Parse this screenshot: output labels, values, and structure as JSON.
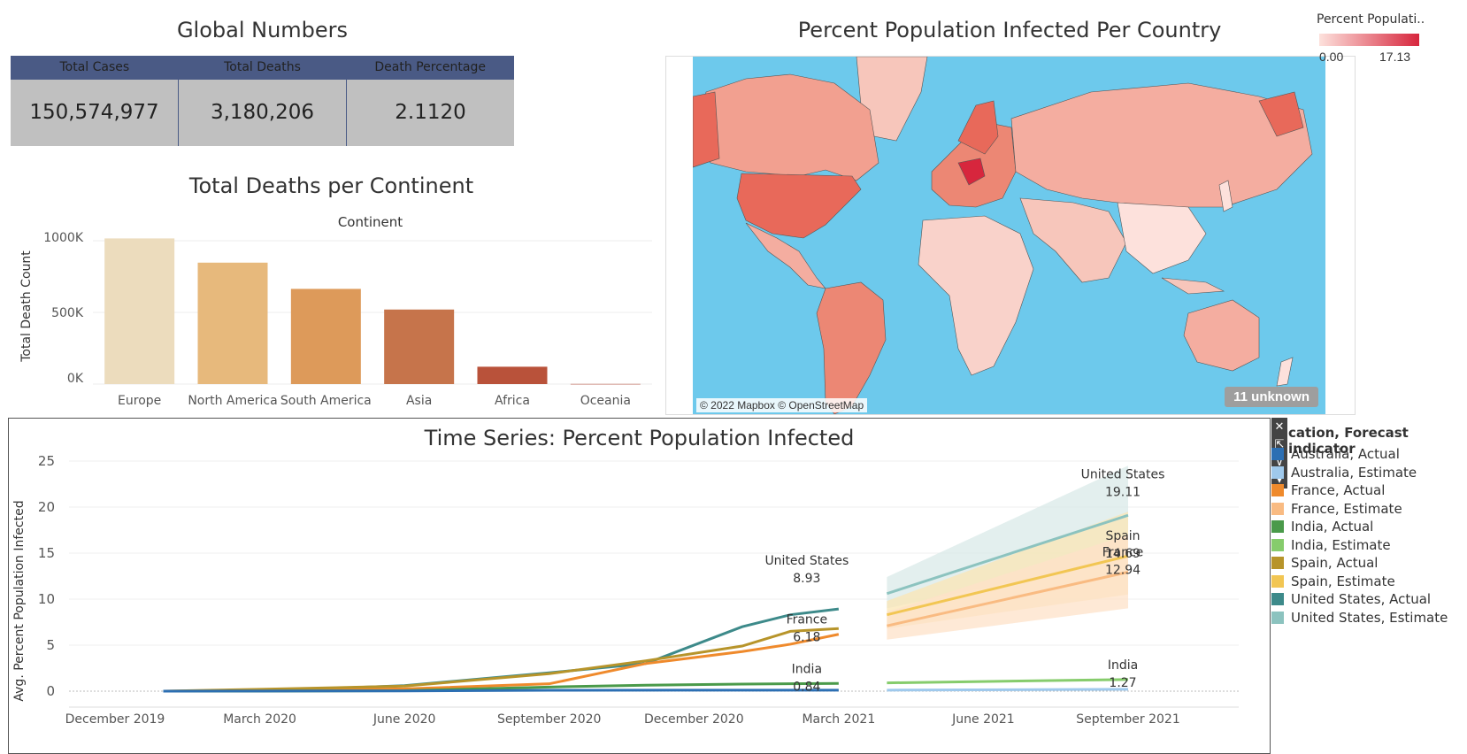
{
  "global": {
    "title": "Global Numbers",
    "headers": [
      "Total Cases",
      "Total Deaths",
      "Death Percentage"
    ],
    "values": [
      "150,574,977",
      "3,180,206",
      "2.1120"
    ]
  },
  "map": {
    "title": "Percent Population Infected Per Country",
    "legend_title": "Percent Populati..",
    "legend_min": "0.00",
    "legend_max": "17.13",
    "legend_colors": [
      "#fde1dc",
      "#d7263d"
    ],
    "attribution": "© 2022 Mapbox © OpenStreetMap",
    "unknown": "11 unknown",
    "sea_color": "#6dc9ec"
  },
  "continent_chart": {
    "title": "Total Deaths per Continent",
    "header": "Continent",
    "ylabel": "Total Death Count",
    "yticks": [
      "1000K",
      "500K",
      "0K"
    ]
  },
  "timeseries": {
    "title": "Time Series: Percent Population Infected",
    "ylabel": "Avg. Percent Population Infected",
    "yticks": [
      "25",
      "20",
      "15",
      "10",
      "5",
      "0"
    ],
    "xticks": [
      "December 2019",
      "March 2020",
      "June 2020",
      "September 2020",
      "December 2020",
      "March 2021",
      "June 2021",
      "September 2021"
    ],
    "labels": [
      {
        "name": "United States",
        "value": "8.93"
      },
      {
        "name": "France",
        "value": "6.18"
      },
      {
        "name": "India",
        "value": "0.84"
      },
      {
        "name": "United States",
        "value": "19.11"
      },
      {
        "name": "Spain",
        "value": "14.69"
      },
      {
        "name": "France",
        "value": "12.94"
      },
      {
        "name": "India",
        "value": "1.27"
      }
    ],
    "legend_title": "cation, Forecast indicator",
    "legend": [
      {
        "label": "Australia, Actual",
        "color": "#2c6fb3"
      },
      {
        "label": "Australia, Estimate",
        "color": "#9fc9ec"
      },
      {
        "label": "France, Actual",
        "color": "#ef8a2c"
      },
      {
        "label": "France, Estimate",
        "color": "#f9bb82"
      },
      {
        "label": "India, Actual",
        "color": "#4a9a4a"
      },
      {
        "label": "India, Estimate",
        "color": "#86cc6c"
      },
      {
        "label": "Spain, Actual",
        "color": "#b7942a"
      },
      {
        "label": "Spain, Estimate",
        "color": "#f2c653"
      },
      {
        "label": "United States, Actual",
        "color": "#3d8a8a"
      },
      {
        "label": "United States, Estimate",
        "color": "#8cc3bf"
      }
    ],
    "tools": [
      "✕",
      "⇱",
      "⊽",
      "▾"
    ]
  },
  "chart_data": [
    {
      "type": "bar",
      "title": "Total Deaths per Continent",
      "xlabel": "Continent",
      "ylabel": "Total Death Count",
      "categories": [
        "Europe",
        "North America",
        "South America",
        "Asia",
        "Africa",
        "Oceania"
      ],
      "values": [
        1016000,
        847000,
        664000,
        520000,
        121000,
        1000
      ],
      "colors": [
        "#ecdcbd",
        "#e7b97c",
        "#dd9a5a",
        "#c6744b",
        "#b9523a",
        "#b0402e"
      ],
      "ylim": [
        0,
        1000000
      ]
    },
    {
      "type": "line",
      "title": "Time Series: Percent Population Infected",
      "ylabel": "Avg. Percent Population Infected",
      "ylim": [
        0,
        25
      ],
      "x_start": "2019-12",
      "x_end": "2021-09",
      "series": [
        {
          "name": "United States, Actual",
          "color": "#3d8a8a",
          "points": [
            [
              "2020-01",
              0.0
            ],
            [
              "2020-03",
              0.01
            ],
            [
              "2020-06",
              0.6
            ],
            [
              "2020-09",
              2.0
            ],
            [
              "2020-11",
              3.0
            ],
            [
              "2021-01",
              7.0
            ],
            [
              "2021-02",
              8.3
            ],
            [
              "2021-03",
              8.93
            ]
          ]
        },
        {
          "name": "France, Actual",
          "color": "#ef8a2c",
          "points": [
            [
              "2020-01",
              0.0
            ],
            [
              "2020-03",
              0.08
            ],
            [
              "2020-06",
              0.25
            ],
            [
              "2020-09",
              0.8
            ],
            [
              "2020-11",
              3.0
            ],
            [
              "2021-01",
              4.3
            ],
            [
              "2021-02",
              5.1
            ],
            [
              "2021-03",
              6.18
            ]
          ]
        },
        {
          "name": "Spain, Actual",
          "color": "#b7942a",
          "points": [
            [
              "2020-01",
              0.0
            ],
            [
              "2020-03",
              0.2
            ],
            [
              "2020-06",
              0.55
            ],
            [
              "2020-09",
              1.9
            ],
            [
              "2020-11",
              3.3
            ],
            [
              "2021-01",
              4.9
            ],
            [
              "2021-02",
              6.5
            ],
            [
              "2021-03",
              6.8
            ]
          ]
        },
        {
          "name": "India, Actual",
          "color": "#4a9a4a",
          "points": [
            [
              "2020-01",
              0.0
            ],
            [
              "2020-03",
              0.0
            ],
            [
              "2020-06",
              0.05
            ],
            [
              "2020-09",
              0.45
            ],
            [
              "2020-11",
              0.65
            ],
            [
              "2021-01",
              0.77
            ],
            [
              "2021-03",
              0.84
            ]
          ]
        },
        {
          "name": "Australia, Actual",
          "color": "#2c6fb3",
          "points": [
            [
              "2020-01",
              0.0
            ],
            [
              "2020-03",
              0.01
            ],
            [
              "2020-06",
              0.03
            ],
            [
              "2020-09",
              0.1
            ],
            [
              "2021-03",
              0.11
            ]
          ]
        },
        {
          "name": "United States, Estimate",
          "color": "#8cc3bf",
          "band": "#d9eae8",
          "points": [
            [
              "2021-04",
              10.6
            ],
            [
              "2021-09",
              19.11
            ]
          ],
          "upper": [
            [
              "2021-04",
              12.4
            ],
            [
              "2021-09",
              24.5
            ]
          ],
          "lower": [
            [
              "2021-04",
              9.0
            ],
            [
              "2021-09",
              14.5
            ]
          ]
        },
        {
          "name": "Spain, Estimate",
          "color": "#f2c653",
          "band": "#fbe6b4",
          "points": [
            [
              "2021-04",
              8.3
            ],
            [
              "2021-09",
              14.69
            ]
          ],
          "upper": [
            [
              "2021-04",
              9.8
            ],
            [
              "2021-09",
              19.5
            ]
          ],
          "lower": [
            [
              "2021-04",
              6.8
            ],
            [
              "2021-09",
              10.5
            ]
          ]
        },
        {
          "name": "France, Estimate",
          "color": "#f9bb82",
          "band": "#fde2c8",
          "points": [
            [
              "2021-04",
              7.1
            ],
            [
              "2021-09",
              12.94
            ]
          ],
          "upper": [
            [
              "2021-04",
              8.6
            ],
            [
              "2021-09",
              17.0
            ]
          ],
          "lower": [
            [
              "2021-04",
              5.6
            ],
            [
              "2021-09",
              9.0
            ]
          ]
        },
        {
          "name": "India, Estimate",
          "color": "#86cc6c",
          "points": [
            [
              "2021-04",
              0.9
            ],
            [
              "2021-09",
              1.27
            ]
          ]
        },
        {
          "name": "Australia, Estimate",
          "color": "#9fc9ec",
          "points": [
            [
              "2021-04",
              0.11
            ],
            [
              "2021-09",
              0.2
            ]
          ]
        }
      ]
    }
  ]
}
